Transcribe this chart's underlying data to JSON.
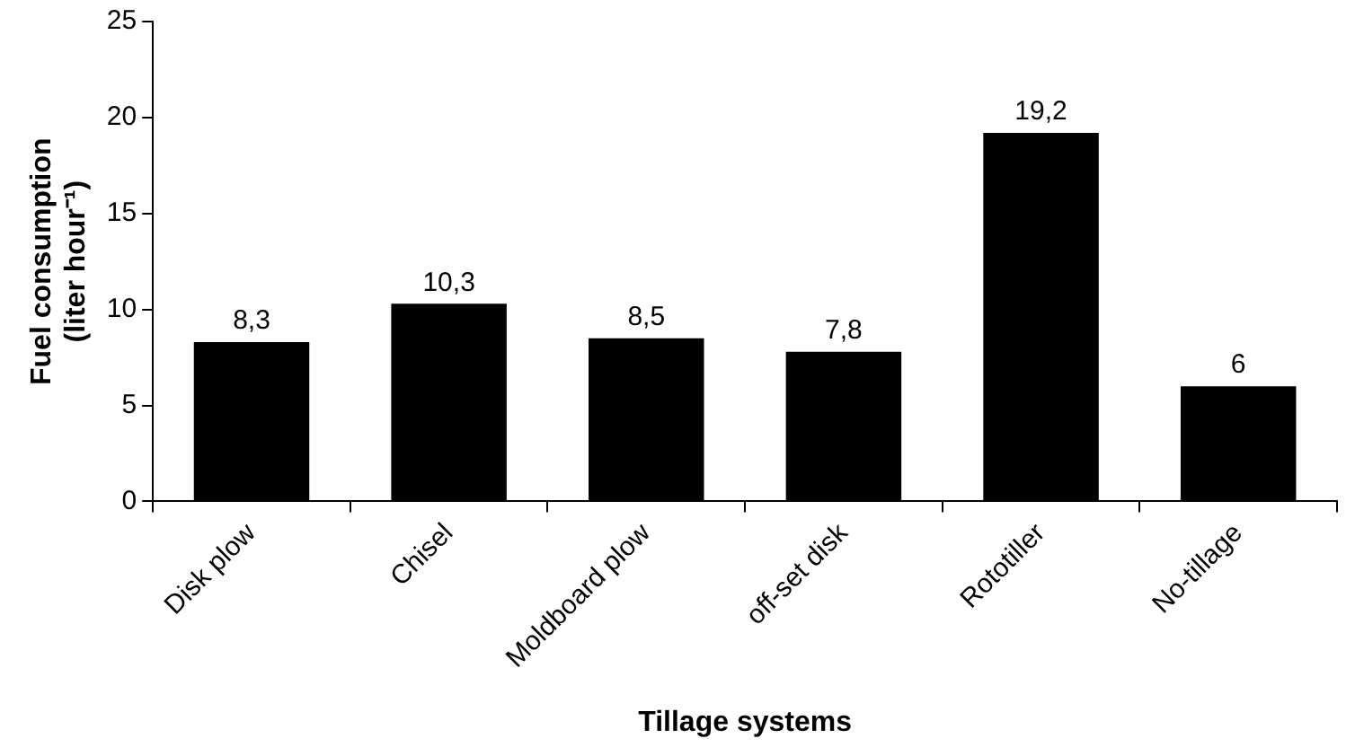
{
  "chart_data": {
    "type": "bar",
    "xlabel": "Tillage systems",
    "ylabel": "Fuel consumption\n(liter hour⁻¹)",
    "categories": [
      "Disk plow",
      "Chisel",
      "Moldboard plow",
      "off-set disk",
      "Rototiller",
      "No-tillage"
    ],
    "values": [
      8.3,
      10.3,
      8.5,
      7.8,
      19.2,
      6
    ],
    "value_labels": [
      "8,3",
      "10,3",
      "8,5",
      "7,8",
      "19,2",
      "6"
    ],
    "color": "#000000",
    "ylim": [
      0,
      25
    ],
    "yticks": [
      0,
      5,
      10,
      15,
      20,
      25
    ],
    "grid": false,
    "legend": false
  }
}
